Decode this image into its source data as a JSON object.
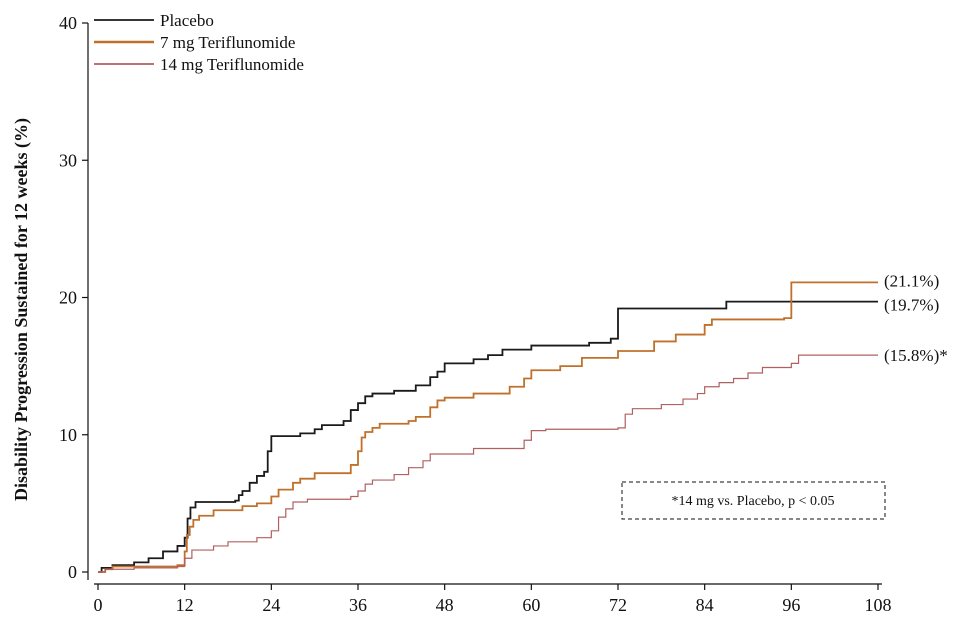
{
  "chart_data": {
    "type": "line",
    "step": true,
    "title": "",
    "xlabel": "",
    "ylabel": "Disability Progression Sustained for 12 weeks (%)",
    "xlim": [
      0,
      108
    ],
    "ylim": [
      0,
      40
    ],
    "x_ticks": [
      0,
      12,
      24,
      36,
      48,
      60,
      72,
      84,
      96,
      108
    ],
    "y_ticks": [
      0,
      10,
      20,
      30,
      40
    ],
    "grid": false,
    "legend_position": "top-left",
    "series": [
      {
        "name": "Placebo",
        "color": "#1a1a1a",
        "end_label": "(19.7%)",
        "points": [
          [
            0,
            0
          ],
          [
            0.5,
            0.3
          ],
          [
            2,
            0.5
          ],
          [
            5,
            0.7
          ],
          [
            7,
            1.0
          ],
          [
            9,
            1.5
          ],
          [
            11,
            1.9
          ],
          [
            12,
            2.5
          ],
          [
            12.4,
            3.9
          ],
          [
            12.8,
            4.7
          ],
          [
            13.5,
            5.1
          ],
          [
            19,
            5.2
          ],
          [
            19.5,
            5.6
          ],
          [
            20,
            5.9
          ],
          [
            21,
            6.5
          ],
          [
            22,
            7.0
          ],
          [
            23,
            7.3
          ],
          [
            23.5,
            8.8
          ],
          [
            24,
            9.9
          ],
          [
            28,
            10.1
          ],
          [
            30,
            10.4
          ],
          [
            31,
            10.7
          ],
          [
            34,
            11.0
          ],
          [
            35,
            11.8
          ],
          [
            36,
            12.3
          ],
          [
            37,
            12.8
          ],
          [
            38,
            13.0
          ],
          [
            41,
            13.2
          ],
          [
            44,
            13.6
          ],
          [
            46,
            14.2
          ],
          [
            47,
            14.6
          ],
          [
            48,
            15.2
          ],
          [
            52,
            15.5
          ],
          [
            54,
            15.8
          ],
          [
            56,
            16.2
          ],
          [
            60,
            16.5
          ],
          [
            68,
            16.7
          ],
          [
            71,
            17.0
          ],
          [
            72,
            19.2
          ],
          [
            87,
            19.7
          ],
          [
            108,
            19.7
          ]
        ]
      },
      {
        "name": "7 mg  Teriflunomide",
        "color": "#c0702a",
        "end_label": "(21.1%)",
        "points": [
          [
            0,
            0
          ],
          [
            1,
            0.2
          ],
          [
            2,
            0.4
          ],
          [
            11,
            0.5
          ],
          [
            12,
            1.5
          ],
          [
            12.3,
            2.7
          ],
          [
            12.7,
            3.3
          ],
          [
            13.2,
            3.8
          ],
          [
            14,
            4.1
          ],
          [
            16,
            4.5
          ],
          [
            20,
            4.8
          ],
          [
            22,
            5.0
          ],
          [
            24,
            5.5
          ],
          [
            25,
            6.0
          ],
          [
            27,
            6.5
          ],
          [
            28,
            6.8
          ],
          [
            30,
            7.2
          ],
          [
            35,
            7.8
          ],
          [
            36,
            8.8
          ],
          [
            36.5,
            9.8
          ],
          [
            37,
            10.2
          ],
          [
            38,
            10.5
          ],
          [
            39,
            10.8
          ],
          [
            43,
            11.0
          ],
          [
            44,
            11.3
          ],
          [
            46,
            12.0
          ],
          [
            47,
            12.5
          ],
          [
            48,
            12.7
          ],
          [
            52,
            13.0
          ],
          [
            57,
            13.5
          ],
          [
            59,
            14.1
          ],
          [
            60,
            14.7
          ],
          [
            64,
            15.0
          ],
          [
            67,
            15.6
          ],
          [
            72,
            16.1
          ],
          [
            77,
            16.8
          ],
          [
            80,
            17.3
          ],
          [
            84,
            18.0
          ],
          [
            85,
            18.4
          ],
          [
            95,
            18.5
          ],
          [
            96,
            21.1
          ],
          [
            108,
            21.1
          ]
        ]
      },
      {
        "name": "14 mg Teriflunomide",
        "color": "#b06060",
        "end_label": "(15.8%)*",
        "points": [
          [
            0,
            0
          ],
          [
            1,
            0.2
          ],
          [
            5,
            0.3
          ],
          [
            11,
            0.4
          ],
          [
            12,
            1.0
          ],
          [
            13,
            1.6
          ],
          [
            16,
            1.9
          ],
          [
            18,
            2.2
          ],
          [
            22,
            2.5
          ],
          [
            24,
            3.0
          ],
          [
            25,
            4.0
          ],
          [
            26,
            4.6
          ],
          [
            27,
            5.1
          ],
          [
            29,
            5.3
          ],
          [
            35,
            5.5
          ],
          [
            36,
            5.9
          ],
          [
            37,
            6.4
          ],
          [
            38,
            6.7
          ],
          [
            41,
            7.1
          ],
          [
            43,
            7.6
          ],
          [
            45,
            8.1
          ],
          [
            46,
            8.6
          ],
          [
            52,
            9.0
          ],
          [
            59,
            9.6
          ],
          [
            60,
            10.3
          ],
          [
            62,
            10.4
          ],
          [
            72,
            10.5
          ],
          [
            73,
            11.5
          ],
          [
            74,
            11.9
          ],
          [
            78,
            12.2
          ],
          [
            81,
            12.6
          ],
          [
            83,
            13.0
          ],
          [
            84,
            13.5
          ],
          [
            86,
            13.8
          ],
          [
            88,
            14.1
          ],
          [
            90,
            14.5
          ],
          [
            92,
            14.9
          ],
          [
            96,
            15.2
          ],
          [
            97,
            15.8
          ],
          [
            108,
            15.8
          ]
        ]
      }
    ],
    "annotation": "*14 mg vs. Placebo, p < 0.05"
  }
}
